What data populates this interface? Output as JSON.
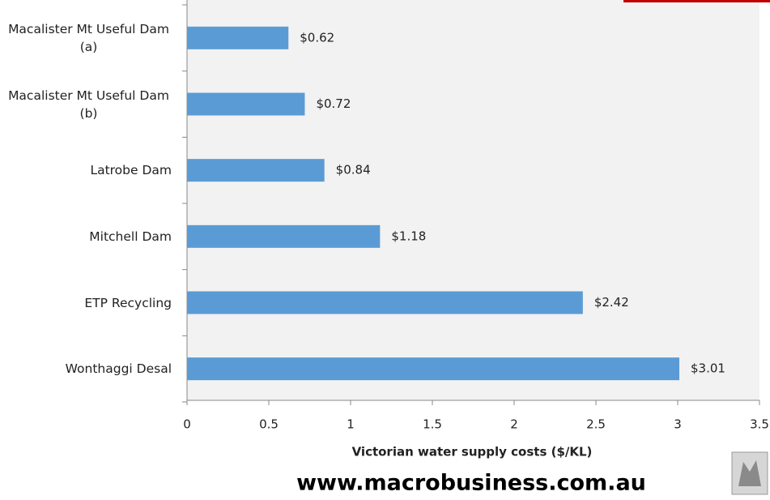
{
  "chart_data": {
    "type": "hbar",
    "categories": [
      "Macalister Mt Useful Dam (a)",
      "Macalister Mt Useful Dam (b)",
      "Latrobe Dam",
      "Mitchell Dam",
      "ETP Recycling",
      "Wonthaggi Desal"
    ],
    "values": [
      0.62,
      0.72,
      0.84,
      1.18,
      2.42,
      3.01
    ],
    "value_labels": [
      "$0.62",
      "$0.72",
      "$0.84",
      "$1.18",
      "$2.42",
      "$3.01"
    ],
    "color": "#5b9bd5",
    "xlim": [
      0,
      3.5
    ],
    "xticks": [
      0,
      0.5,
      1,
      1.5,
      2,
      2.5,
      3,
      3.5
    ],
    "xlabel": "Victorian water supply costs ($/KL)",
    "source": "www.macrobusiness.com.au"
  }
}
